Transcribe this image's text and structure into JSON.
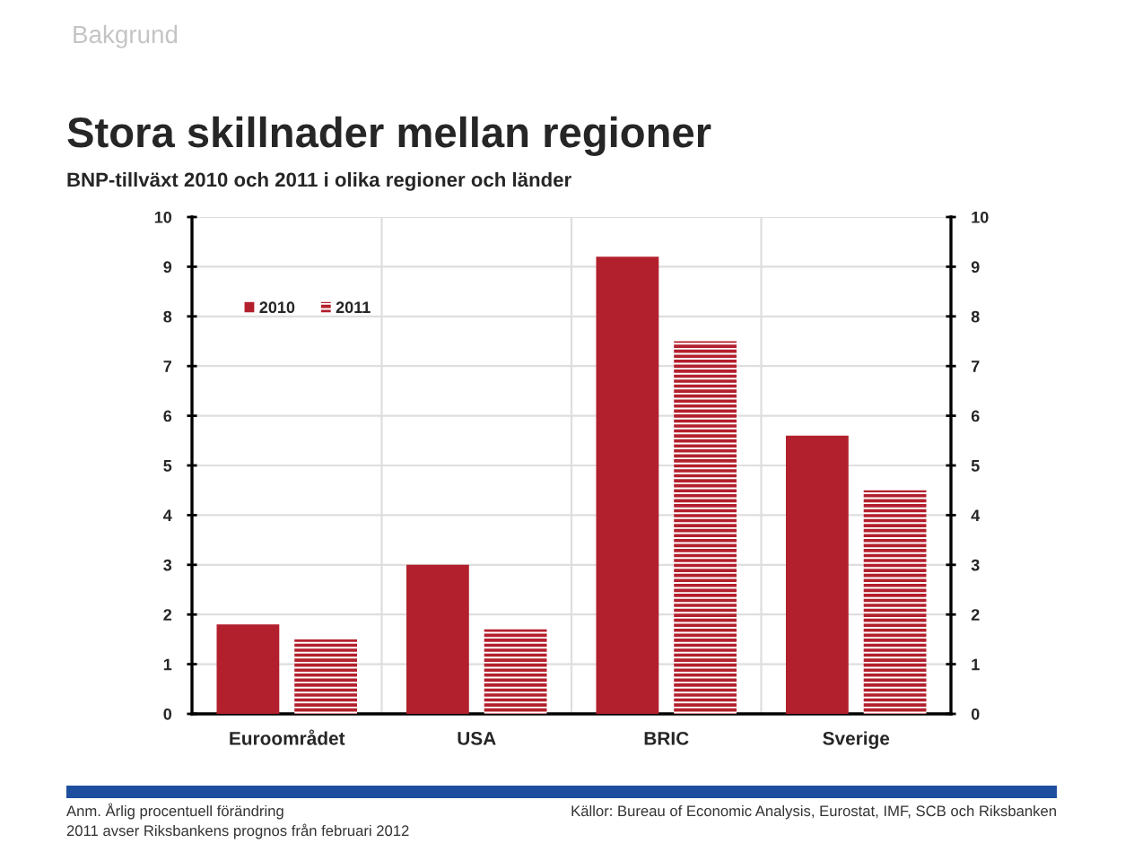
{
  "chart_data": {
    "type": "bar",
    "title": "Stora skillnader mellan regioner",
    "subtitle": "BNP-tillväxt 2010 och 2011 i olika regioner och länder",
    "categories": [
      "Euroområdet",
      "USA",
      "BRIC",
      "Sverige"
    ],
    "series": [
      {
        "name": "2010",
        "color": "#b3202d",
        "values": [
          1.8,
          3.0,
          9.2,
          5.6
        ]
      },
      {
        "name": "2011",
        "color": "#b3202d",
        "values": [
          1.5,
          1.7,
          7.5,
          4.5
        ]
      }
    ],
    "ylim": [
      0,
      10
    ],
    "yticks": [
      0,
      1,
      2,
      3,
      4,
      5,
      6,
      7,
      8,
      9,
      10
    ],
    "y2lim": [
      0,
      10
    ],
    "y2ticks": [
      0,
      1,
      2,
      3,
      4,
      5,
      6,
      7,
      8,
      9,
      10
    ],
    "grid": true,
    "legend": "top left",
    "annotations": [
      "Bakgrund",
      "Anm. Årlig procentuell förändring",
      "2011 avser Riksbankens prognos från februari 2012",
      "Källor: Bureau of Economic Analysis, Eurostat, IMF, SCB och Riksbanken"
    ]
  }
}
